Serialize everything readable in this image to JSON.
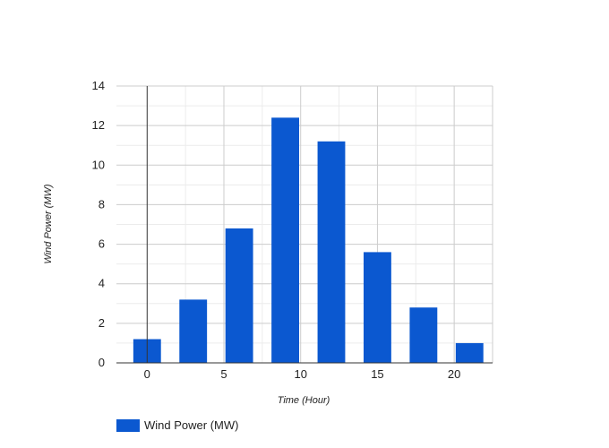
{
  "chart_data": {
    "type": "bar",
    "x": [
      0,
      3,
      6,
      9,
      12,
      15,
      18,
      21
    ],
    "values": [
      1.2,
      3.2,
      6.8,
      12.4,
      11.2,
      5.6,
      2.8,
      1.0
    ],
    "series": [
      {
        "name": "Wind Power (MW)",
        "values": [
          1.2,
          3.2,
          6.8,
          12.4,
          11.2,
          5.6,
          2.8,
          1.0
        ]
      }
    ],
    "xlabel": "Time (Hour)",
    "ylabel": "Wind Power (MW)",
    "xlim": [
      -2,
      22.5
    ],
    "ylim": [
      0,
      14
    ],
    "xticks": [
      0,
      5,
      10,
      15,
      20
    ],
    "yticks": [
      0,
      2,
      4,
      6,
      8,
      10,
      12,
      14
    ],
    "bar_width": 1.8,
    "grid": true,
    "legend": "bottom-left",
    "color": "#0b58d0"
  }
}
